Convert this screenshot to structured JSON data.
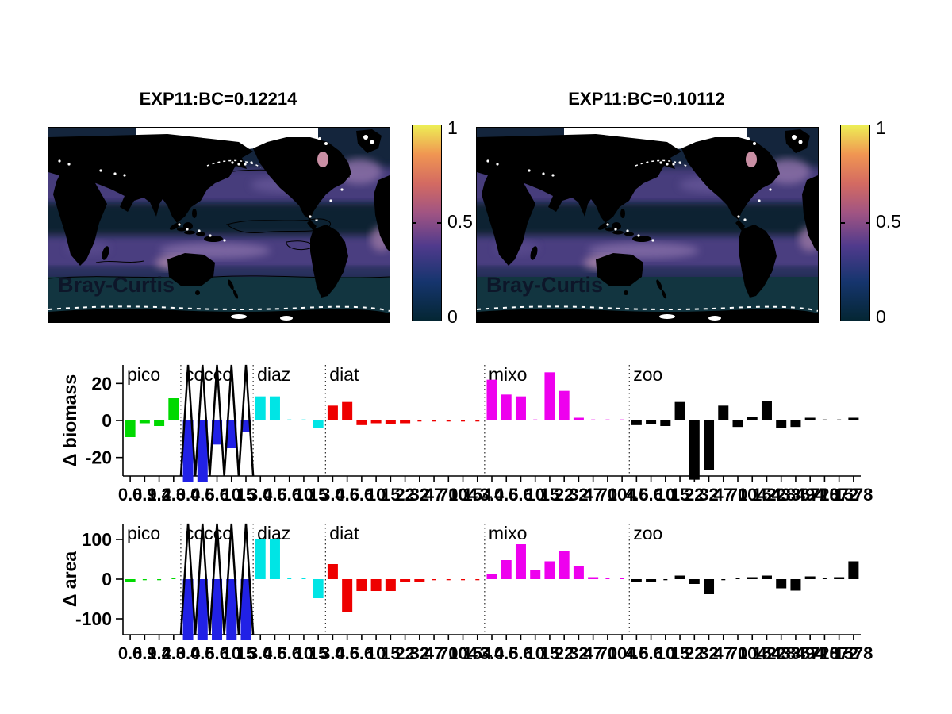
{
  "maps": [
    {
      "title": "EXP11:BC=0.12214",
      "overlay_label": "Bray-Curtis",
      "colorbar": {
        "ticks": [
          "1",
          "0.5",
          "0"
        ]
      },
      "has_contours": true
    },
    {
      "title": "EXP11:BC=0.10112",
      "overlay_label": "Bray-Curtis",
      "colorbar": {
        "ticks": [
          "1",
          "0.5",
          "0"
        ]
      },
      "has_contours": false
    }
  ],
  "colorbar": {
    "gradient_colors": [
      "#042633",
      "#16356e",
      "#4f3a8c",
      "#a05483",
      "#d36a62",
      "#f09552",
      "#edee55"
    ],
    "gradient_positions": [
      0,
      20,
      38,
      55,
      70,
      85,
      100
    ],
    "range": [
      0,
      1
    ]
  },
  "map_colors": {
    "ocean_base": "#14253c",
    "band_purple": "#4d4184",
    "equator_dark": "#0e2133",
    "southern_teal": "#123540",
    "land": "#000000",
    "ice": "#ffffff",
    "pink_patch": "#c98fa4",
    "label_color": "#0d1226"
  },
  "chart_data": [
    {
      "type": "bar",
      "ylabel": "Δ biomass",
      "yticks": [
        20,
        0,
        -20
      ],
      "ylim": [
        -30,
        30
      ],
      "grid": false,
      "groups": [
        {
          "name": "pico",
          "color": "#00d900",
          "sizes": [
            0.6,
            0.9,
            1.4,
            2.0
          ],
          "values": [
            -9,
            -1.5,
            -3,
            12
          ]
        },
        {
          "name": "cocco",
          "color": "#2121e6",
          "offscale_zigzag": true,
          "sizes": [
            3.0,
            4.5,
            6.6,
            10,
            15
          ],
          "values": [
            -33,
            -33,
            -13,
            -15,
            -6
          ]
        },
        {
          "name": "diaz",
          "color": "#00e5e5",
          "sizes": [
            3.0,
            4.5,
            6.6,
            10,
            15
          ],
          "values": [
            13,
            13,
            0.3,
            0.2,
            -4
          ]
        },
        {
          "name": "diat",
          "color": "#ee0000",
          "sizes": [
            3.0,
            4.5,
            6.6,
            10,
            15,
            22,
            32,
            47,
            70,
            104,
            154
          ],
          "values": [
            8,
            10,
            -2.5,
            -1.5,
            -1.8,
            -1.5,
            -0.4,
            -0.3,
            -0.3,
            -0.2,
            -0.2
          ]
        },
        {
          "name": "mixo",
          "color": "#ee00ee",
          "sizes": [
            3.0,
            4.5,
            6.6,
            10,
            15,
            22,
            32,
            47,
            70,
            104
          ],
          "values": [
            22,
            14,
            13,
            0.3,
            26,
            16,
            1.5,
            0.3,
            0.2,
            0.1
          ]
        },
        {
          "name": "zoo",
          "color": "#000000",
          "sizes": [
            4.5,
            6.6,
            10,
            15,
            22,
            32,
            47,
            70,
            104,
            154,
            228,
            336,
            494,
            728,
            1072,
            1578
          ],
          "values": [
            -2.5,
            -2,
            -3,
            10,
            -32,
            -27,
            8,
            -3.5,
            2,
            10.5,
            -4,
            -3.5,
            1.5,
            0.1,
            0.2,
            1.5
          ]
        }
      ]
    },
    {
      "type": "bar",
      "ylabel": "Δ area",
      "yticks": [
        100,
        0,
        -100
      ],
      "ylim": [
        -140,
        140
      ],
      "grid": false,
      "groups": [
        {
          "name": "pico",
          "color": "#00d900",
          "sizes": [
            0.6,
            0.9,
            1.4,
            2.0
          ],
          "values": [
            -6,
            -0.5,
            -0.5,
            0.5
          ]
        },
        {
          "name": "cocco",
          "color": "#2121e6",
          "offscale_zigzag": true,
          "sizes": [
            3.0,
            4.5,
            6.6,
            10,
            15
          ],
          "values": [
            -155,
            -155,
            -155,
            -155,
            -155
          ]
        },
        {
          "name": "diaz",
          "color": "#00e5e5",
          "sizes": [
            3.0,
            4.5,
            6.6,
            10,
            15
          ],
          "values": [
            100,
            100,
            0.5,
            0.3,
            -48
          ]
        },
        {
          "name": "diat",
          "color": "#ee0000",
          "sizes": [
            3.0,
            4.5,
            6.6,
            10,
            15,
            22,
            32,
            47,
            70,
            104,
            154
          ],
          "values": [
            38,
            -82,
            -30,
            -30,
            -30,
            -8,
            -6,
            -1,
            -1,
            -0.5,
            -0.5
          ]
        },
        {
          "name": "mixo",
          "color": "#ee00ee",
          "sizes": [
            3.0,
            4.5,
            6.6,
            10,
            15,
            22,
            32,
            47,
            70,
            104
          ],
          "values": [
            14,
            48,
            88,
            23,
            45,
            70,
            32,
            5,
            0.5,
            0.5
          ]
        },
        {
          "name": "zoo",
          "color": "#000000",
          "sizes": [
            4.5,
            6.6,
            10,
            15,
            22,
            32,
            47,
            70,
            104,
            154,
            228,
            336,
            494,
            728,
            1072,
            1578
          ],
          "values": [
            -6,
            -6,
            -0.5,
            9,
            -12,
            -38,
            -0.5,
            0.5,
            5,
            9,
            -23,
            -29,
            7,
            0.3,
            5,
            45
          ]
        }
      ]
    }
  ]
}
